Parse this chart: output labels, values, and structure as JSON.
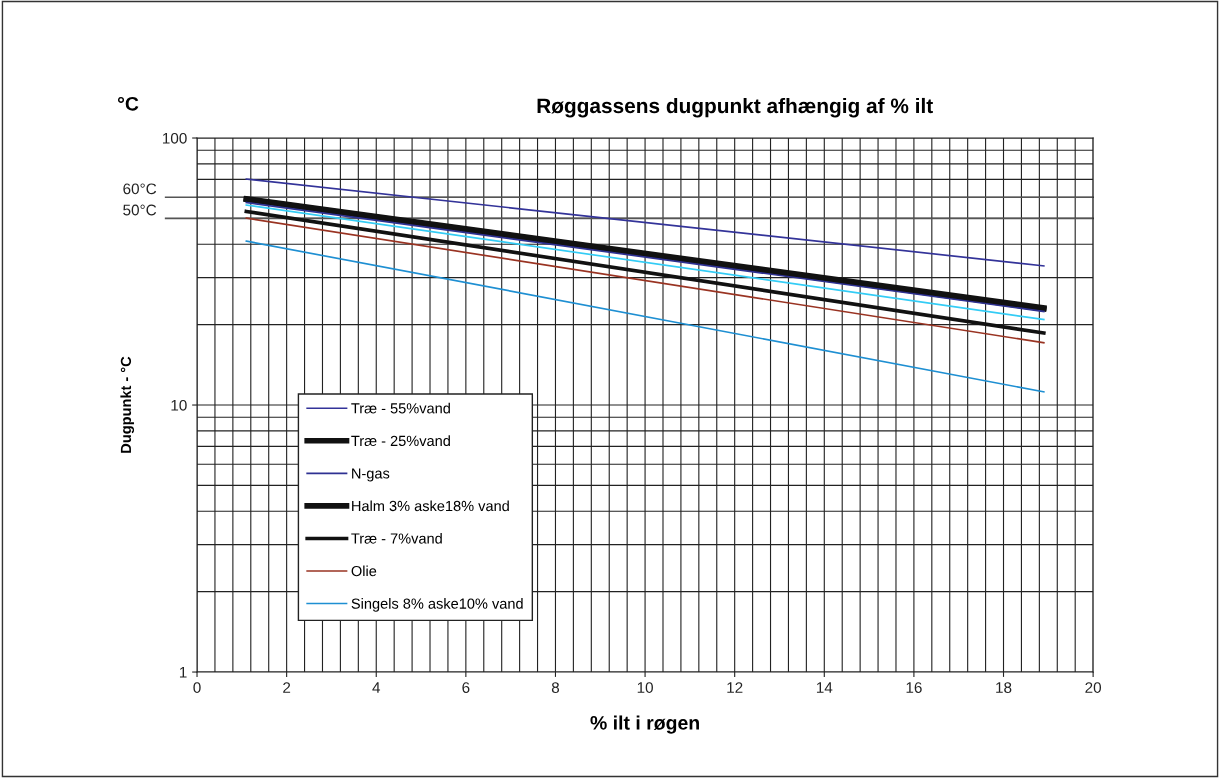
{
  "chart_data": {
    "type": "line",
    "title": "Røggassens dugpunkt afhængig af % ilt",
    "xlabel": "% ilt i røgen",
    "ylabel": "Dugpunkt - °C",
    "annotations": [
      "°C"
    ],
    "x": [
      1.1,
      18.9
    ],
    "series": [
      {
        "name": "Træ - 55%vand",
        "color": "#333399",
        "values": [
          70.2,
          33.2
        ]
      },
      {
        "name": "Træ - 25%vand",
        "color": "#111111",
        "values": [
          58.9,
          22.9
        ]
      },
      {
        "name": "N-gas",
        "color": "#2e3192",
        "values": [
          57.3,
          22.4
        ]
      },
      {
        "name": "Halm 3% aske18% vand",
        "color": "#111111",
        "values": [
          59.2,
          23.1
        ]
      },
      {
        "name": "Træ - 7%vand",
        "color": "#111111",
        "values": [
          53.1,
          18.6
        ]
      },
      {
        "name": "Olie",
        "color": "#993322",
        "values": [
          50.1,
          17.1
        ]
      },
      {
        "name": "Singels 8% aske10% vand",
        "color": "#1e8fd2",
        "values": [
          41.1,
          11.2
        ]
      },
      {
        "color": "#33ccf5",
        "values": [
          56.1,
          20.9
        ]
      }
    ],
    "log": "y",
    "xlim": [
      0,
      20
    ],
    "xticks": [
      0,
      2,
      4,
      6,
      8,
      10,
      12,
      14,
      16,
      18,
      20
    ],
    "ylim": [
      1,
      100
    ],
    "yticks": [
      1,
      10,
      100
    ],
    "ref_lines": [
      {
        "axis": "y",
        "value": 60,
        "label": "60°C",
        "color": "#555555"
      },
      {
        "axis": "y",
        "value": 50,
        "label": "50°C",
        "color": "#555555"
      }
    ],
    "grid": true,
    "legend": "bottom left",
    "line_style": "solid",
    "marker": "none"
  }
}
